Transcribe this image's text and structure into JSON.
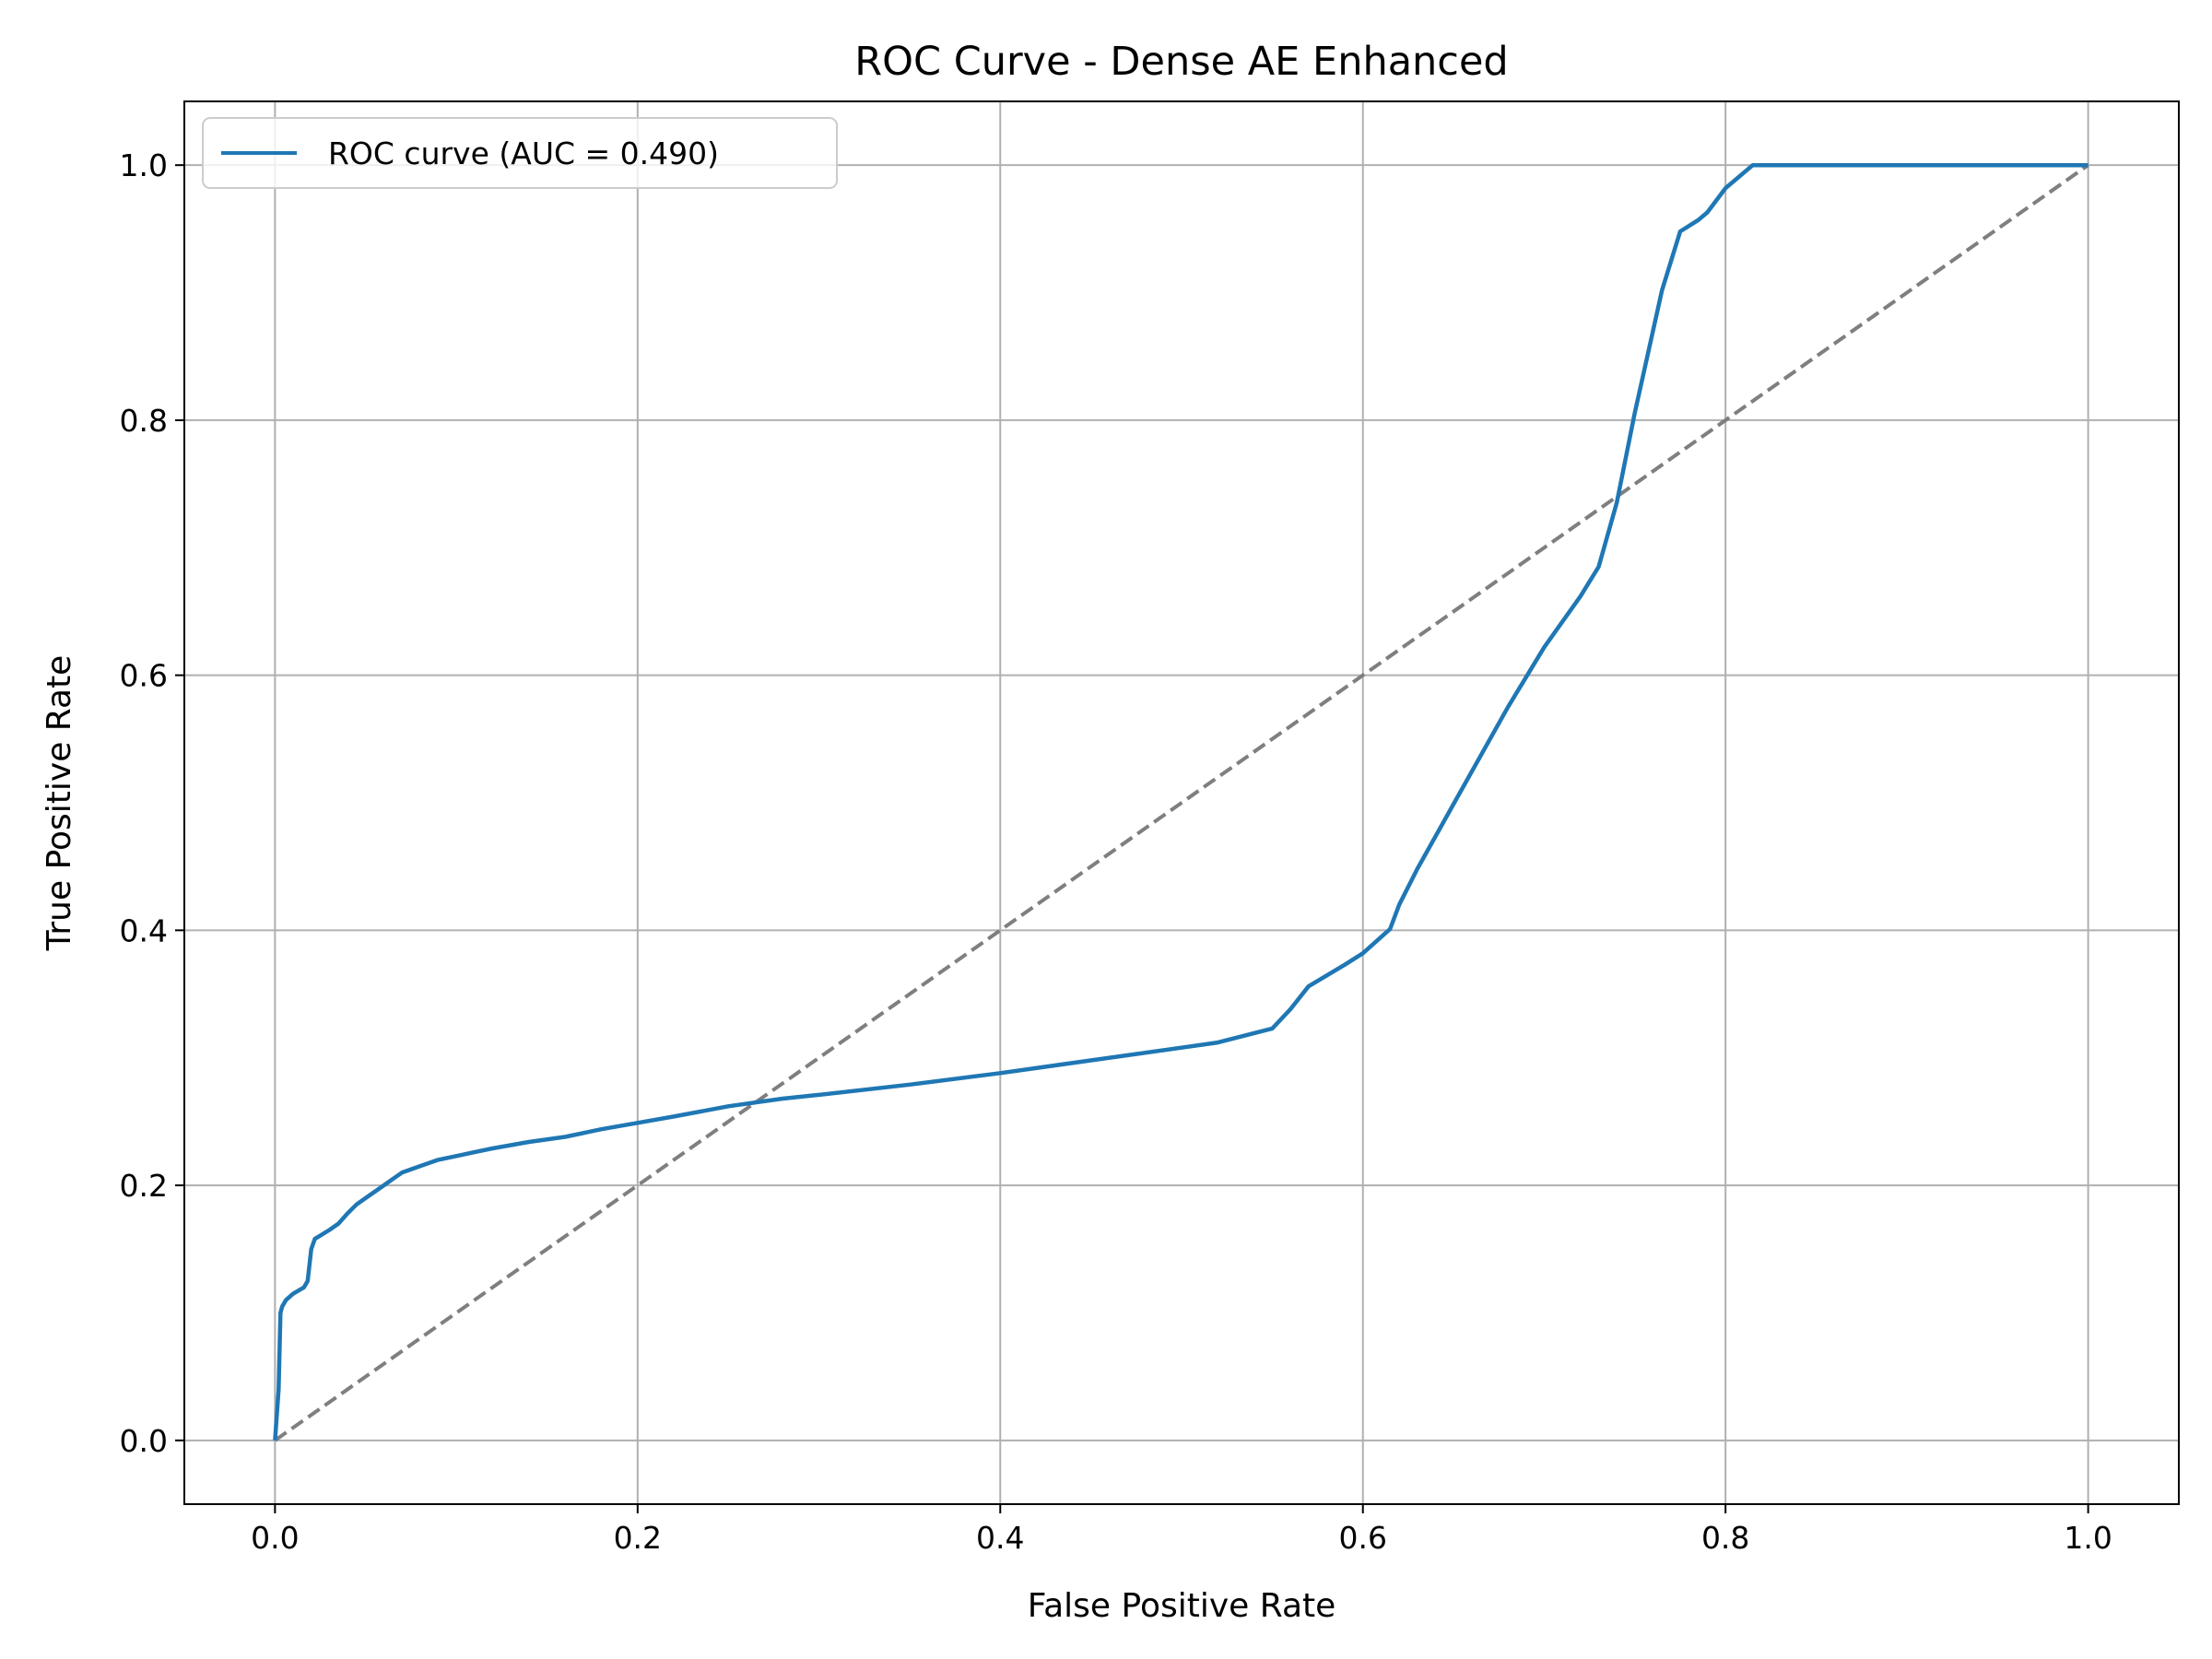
{
  "chart_data": {
    "type": "line",
    "title": "ROC Curve - Dense AE Enhanced",
    "xlabel": "False Positive Rate",
    "ylabel": "True Positive Rate",
    "xlim": [
      -0.05,
      1.05
    ],
    "ylim": [
      -0.05,
      1.05
    ],
    "xticks": [
      "0.0",
      "0.2",
      "0.4",
      "0.6",
      "0.8",
      "1.0"
    ],
    "yticks": [
      "0.0",
      "0.2",
      "0.4",
      "0.6",
      "0.8",
      "1.0"
    ],
    "grid": true,
    "legend_position": "upper-left",
    "series": [
      {
        "name": "ROC curve (AUC = 0.490)",
        "color": "#1f77b4",
        "style": "solid",
        "x": [
          0.0,
          0.002,
          0.003,
          0.004,
          0.006,
          0.01,
          0.016,
          0.018,
          0.02,
          0.022,
          0.03,
          0.035,
          0.04,
          0.045,
          0.05,
          0.055,
          0.06,
          0.065,
          0.07,
          0.08,
          0.09,
          0.1,
          0.11,
          0.12,
          0.14,
          0.16,
          0.18,
          0.2,
          0.22,
          0.25,
          0.28,
          0.3,
          0.35,
          0.4,
          0.45,
          0.5,
          0.52,
          0.55,
          0.56,
          0.57,
          0.59,
          0.6,
          0.615,
          0.62,
          0.63,
          0.65,
          0.68,
          0.7,
          0.72,
          0.73,
          0.74,
          0.75,
          0.765,
          0.775,
          0.785,
          0.79,
          0.8,
          0.815,
          0.85,
          0.9,
          1.0
        ],
        "y": [
          0.0,
          0.04,
          0.1,
          0.105,
          0.11,
          0.115,
          0.12,
          0.125,
          0.15,
          0.158,
          0.165,
          0.17,
          0.178,
          0.185,
          0.19,
          0.195,
          0.2,
          0.205,
          0.21,
          0.215,
          0.22,
          0.223,
          0.226,
          0.229,
          0.234,
          0.238,
          0.244,
          0.249,
          0.254,
          0.262,
          0.268,
          0.271,
          0.279,
          0.288,
          0.298,
          0.308,
          0.312,
          0.323,
          0.338,
          0.356,
          0.373,
          0.382,
          0.401,
          0.42,
          0.448,
          0.499,
          0.575,
          0.622,
          0.662,
          0.685,
          0.735,
          0.806,
          0.902,
          0.948,
          0.957,
          0.963,
          0.982,
          1.0,
          1.0,
          1.0,
          1.0
        ]
      },
      {
        "color": "#7f7f7f",
        "style": "dashed",
        "x": [
          0.0,
          1.0
        ],
        "y": [
          0.0,
          1.0
        ]
      }
    ]
  }
}
